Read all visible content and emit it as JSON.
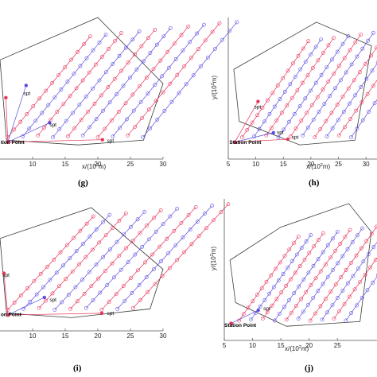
{
  "chart_data": [
    {
      "id": "g",
      "panel_label": "(g)",
      "type": "line",
      "xlabel": "x/(10^2m)",
      "ylabel": "",
      "xticks": [
        "10",
        "15",
        "20",
        "25",
        "30"
      ],
      "yticks": [],
      "annotations": [
        {
          "text": "spt",
          "x": 8.6,
          "y": 13.6
        },
        {
          "text": "spt",
          "x": 12.6,
          "y": 6.9
        },
        {
          "text": "spt",
          "x": 21.4,
          "y": 3.5
        },
        {
          "text": "tion Point",
          "x": 5.1,
          "y": 3.2
        }
      ],
      "colors": {
        "boundary": "#3a3a3a",
        "red": "#e8325a",
        "blue": "#5a4fe0"
      }
    },
    {
      "id": "h",
      "panel_label": "(h)",
      "type": "line",
      "xlabel": "x/(10^2m)",
      "ylabel": "y/(10^2m)",
      "xticks": [
        "5",
        "10",
        "15",
        "20",
        "25",
        "30"
      ],
      "yticks": [],
      "annotations": [
        {
          "text": "spt",
          "x": 9.7,
          "y": 10.7
        },
        {
          "text": "spt",
          "x": 13.8,
          "y": 5.3
        },
        {
          "text": "spt",
          "x": 16.5,
          "y": 4.3
        },
        {
          "text": "Station Point",
          "x": 5.2,
          "y": 3.2
        }
      ],
      "colors": {
        "boundary": "#3a3a3a",
        "red": "#e8325a",
        "blue": "#5a4fe0"
      }
    },
    {
      "id": "i",
      "panel_label": "(i)",
      "type": "line",
      "xlabel": "x/(10^2m)",
      "ylabel": "",
      "xticks": [
        "10",
        "15",
        "20",
        "25",
        "30"
      ],
      "yticks": [],
      "annotations": [
        {
          "text": "spt",
          "x": 5.4,
          "y": 12.3
        },
        {
          "text": "spt",
          "x": 12.6,
          "y": 6.7
        },
        {
          "text": "spt",
          "x": 21.4,
          "y": 3.6
        },
        {
          "text": "on Point",
          "x": 5.1,
          "y": 3.3
        }
      ],
      "colors": {
        "boundary": "#3a3a3a",
        "red": "#e8325a",
        "blue": "#5a4fe0"
      }
    },
    {
      "id": "j",
      "panel_label": "(j)",
      "type": "line",
      "xlabel": "x/(10^2m)",
      "ylabel": "y/(10^2m)",
      "xticks": [
        "5",
        "10",
        "15",
        "20",
        "25"
      ],
      "yticks": [],
      "annotations": [
        {
          "text": "spt",
          "x": 11.9,
          "y": 6.4
        },
        {
          "text": "Station Point",
          "x": 5.0,
          "y": 2.9
        }
      ],
      "colors": {
        "boundary": "#3a3a3a",
        "red": "#e8325a",
        "blue": "#5a4fe0"
      }
    }
  ]
}
